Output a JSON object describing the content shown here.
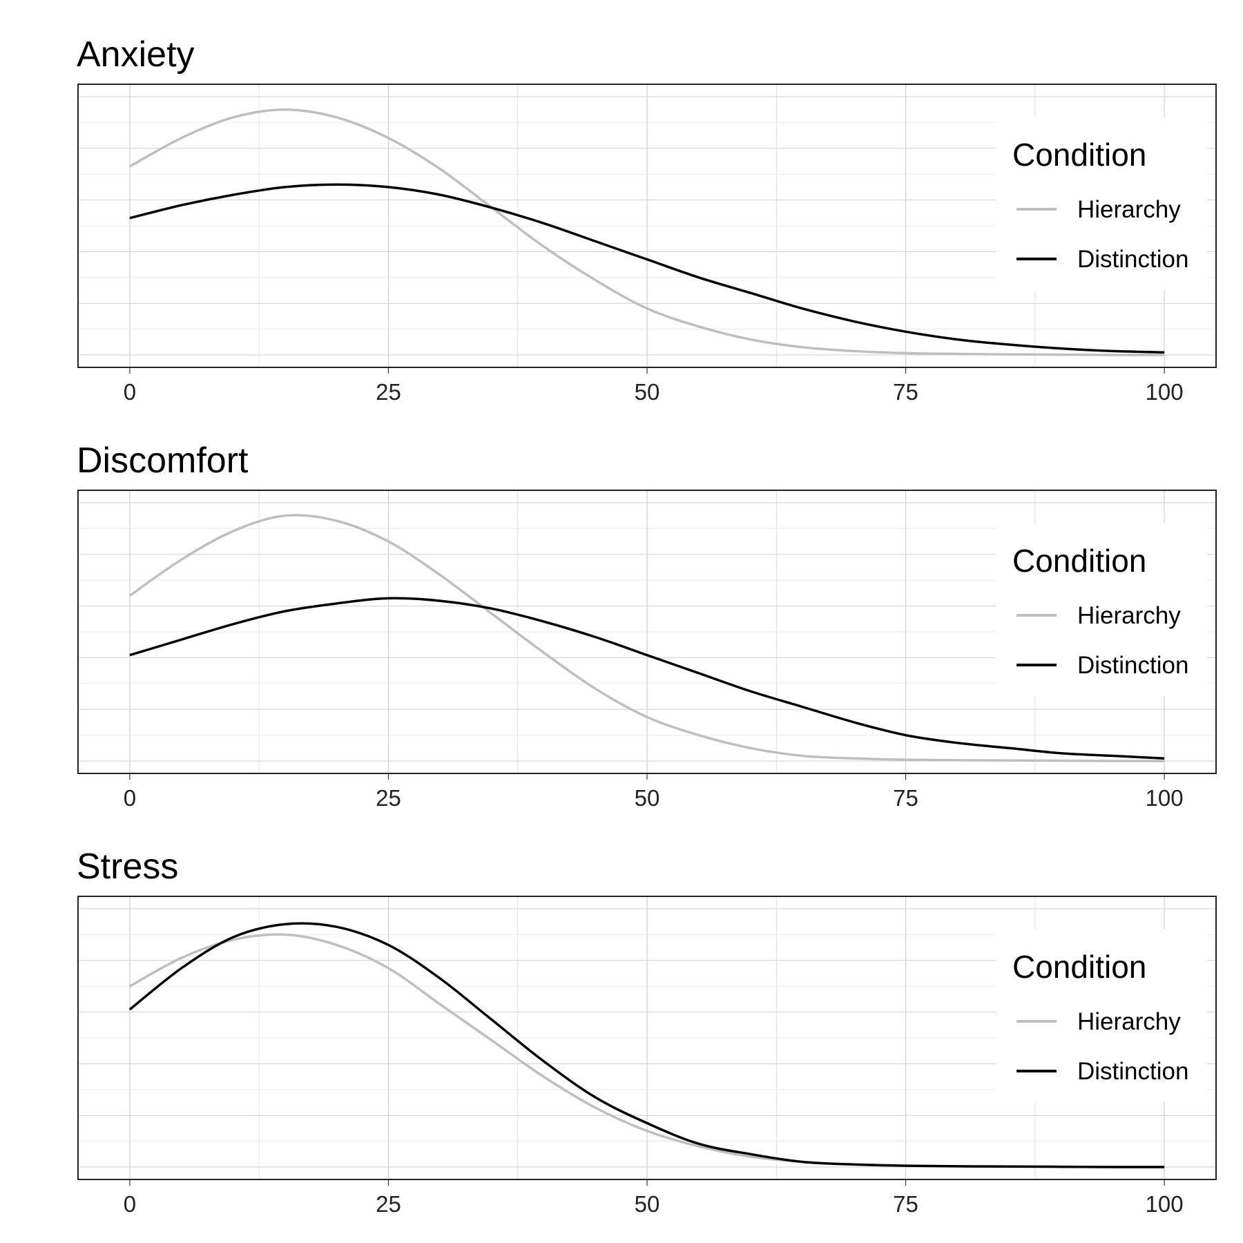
{
  "chart_data": [
    {
      "type": "line",
      "title": "Anxiety",
      "xlim": [
        -5,
        105
      ],
      "ylim": [
        0,
        1
      ],
      "x_ticks": [
        "0",
        "25",
        "50",
        "75",
        "100"
      ],
      "legend": {
        "title": "Condition",
        "position": "top-right",
        "entries": [
          "Hierarchy",
          "Distinction"
        ]
      },
      "series": [
        {
          "name": "Hierarchy",
          "color": "#bebebe",
          "x": [
            0,
            5,
            10,
            15,
            20,
            25,
            30,
            35,
            40,
            45,
            50,
            55,
            60,
            65,
            70,
            75,
            80,
            85,
            90,
            95,
            100
          ],
          "y": [
            0.73,
            0.84,
            0.92,
            0.95,
            0.92,
            0.84,
            0.72,
            0.57,
            0.42,
            0.29,
            0.18,
            0.11,
            0.06,
            0.03,
            0.015,
            0.007,
            0.004,
            0.002,
            0.001,
            0.0,
            0.0
          ]
        },
        {
          "name": "Distinction",
          "color": "#000000",
          "x": [
            0,
            5,
            10,
            15,
            20,
            25,
            30,
            35,
            40,
            45,
            50,
            55,
            60,
            65,
            70,
            75,
            80,
            85,
            90,
            95,
            100
          ],
          "y": [
            0.53,
            0.58,
            0.62,
            0.65,
            0.66,
            0.65,
            0.62,
            0.57,
            0.51,
            0.44,
            0.37,
            0.3,
            0.24,
            0.18,
            0.13,
            0.09,
            0.06,
            0.04,
            0.025,
            0.015,
            0.01
          ]
        }
      ]
    },
    {
      "type": "line",
      "title": "Discomfort",
      "xlim": [
        -5,
        105
      ],
      "ylim": [
        0,
        1
      ],
      "x_ticks": [
        "0",
        "25",
        "50",
        "75",
        "100"
      ],
      "legend": {
        "title": "Condition",
        "position": "top-right",
        "entries": [
          "Hierarchy",
          "Distinction"
        ]
      },
      "series": [
        {
          "name": "Hierarchy",
          "color": "#bebebe",
          "x": [
            0,
            5,
            10,
            15,
            20,
            25,
            30,
            35,
            40,
            45,
            50,
            55,
            60,
            65,
            70,
            75,
            80,
            85,
            90,
            95,
            100
          ],
          "y": [
            0.64,
            0.78,
            0.89,
            0.95,
            0.93,
            0.85,
            0.72,
            0.57,
            0.42,
            0.28,
            0.17,
            0.1,
            0.05,
            0.02,
            0.01,
            0.005,
            0.003,
            0.002,
            0.001,
            0.0,
            0.0
          ]
        },
        {
          "name": "Distinction",
          "color": "#000000",
          "x": [
            0,
            5,
            10,
            15,
            20,
            25,
            30,
            35,
            40,
            45,
            50,
            55,
            60,
            65,
            70,
            75,
            80,
            85,
            90,
            95,
            100
          ],
          "y": [
            0.41,
            0.47,
            0.53,
            0.58,
            0.61,
            0.63,
            0.62,
            0.59,
            0.54,
            0.48,
            0.41,
            0.34,
            0.27,
            0.21,
            0.15,
            0.1,
            0.07,
            0.05,
            0.03,
            0.02,
            0.01
          ]
        }
      ]
    },
    {
      "type": "line",
      "title": "Stress",
      "xlim": [
        -5,
        105
      ],
      "ylim": [
        0,
        1
      ],
      "x_ticks": [
        "0",
        "25",
        "50",
        "75",
        "100"
      ],
      "legend": {
        "title": "Condition",
        "position": "top-right",
        "entries": [
          "Hierarchy",
          "Distinction"
        ]
      },
      "series": [
        {
          "name": "Hierarchy",
          "color": "#bebebe",
          "x": [
            0,
            5,
            10,
            15,
            20,
            25,
            30,
            35,
            40,
            45,
            50,
            55,
            60,
            65,
            70,
            75,
            80,
            85,
            90,
            95,
            100
          ],
          "y": [
            0.7,
            0.81,
            0.88,
            0.9,
            0.86,
            0.77,
            0.63,
            0.49,
            0.35,
            0.23,
            0.14,
            0.08,
            0.04,
            0.02,
            0.01,
            0.005,
            0.003,
            0.002,
            0.001,
            0.0,
            0.0
          ]
        },
        {
          "name": "Distinction",
          "color": "#000000",
          "x": [
            0,
            5,
            10,
            15,
            20,
            25,
            30,
            35,
            40,
            45,
            50,
            55,
            60,
            65,
            70,
            75,
            80,
            85,
            90,
            95,
            100
          ],
          "y": [
            0.61,
            0.77,
            0.89,
            0.94,
            0.93,
            0.86,
            0.73,
            0.57,
            0.41,
            0.27,
            0.17,
            0.09,
            0.05,
            0.02,
            0.01,
            0.005,
            0.003,
            0.002,
            0.001,
            0.0,
            0.0
          ]
        }
      ]
    }
  ]
}
